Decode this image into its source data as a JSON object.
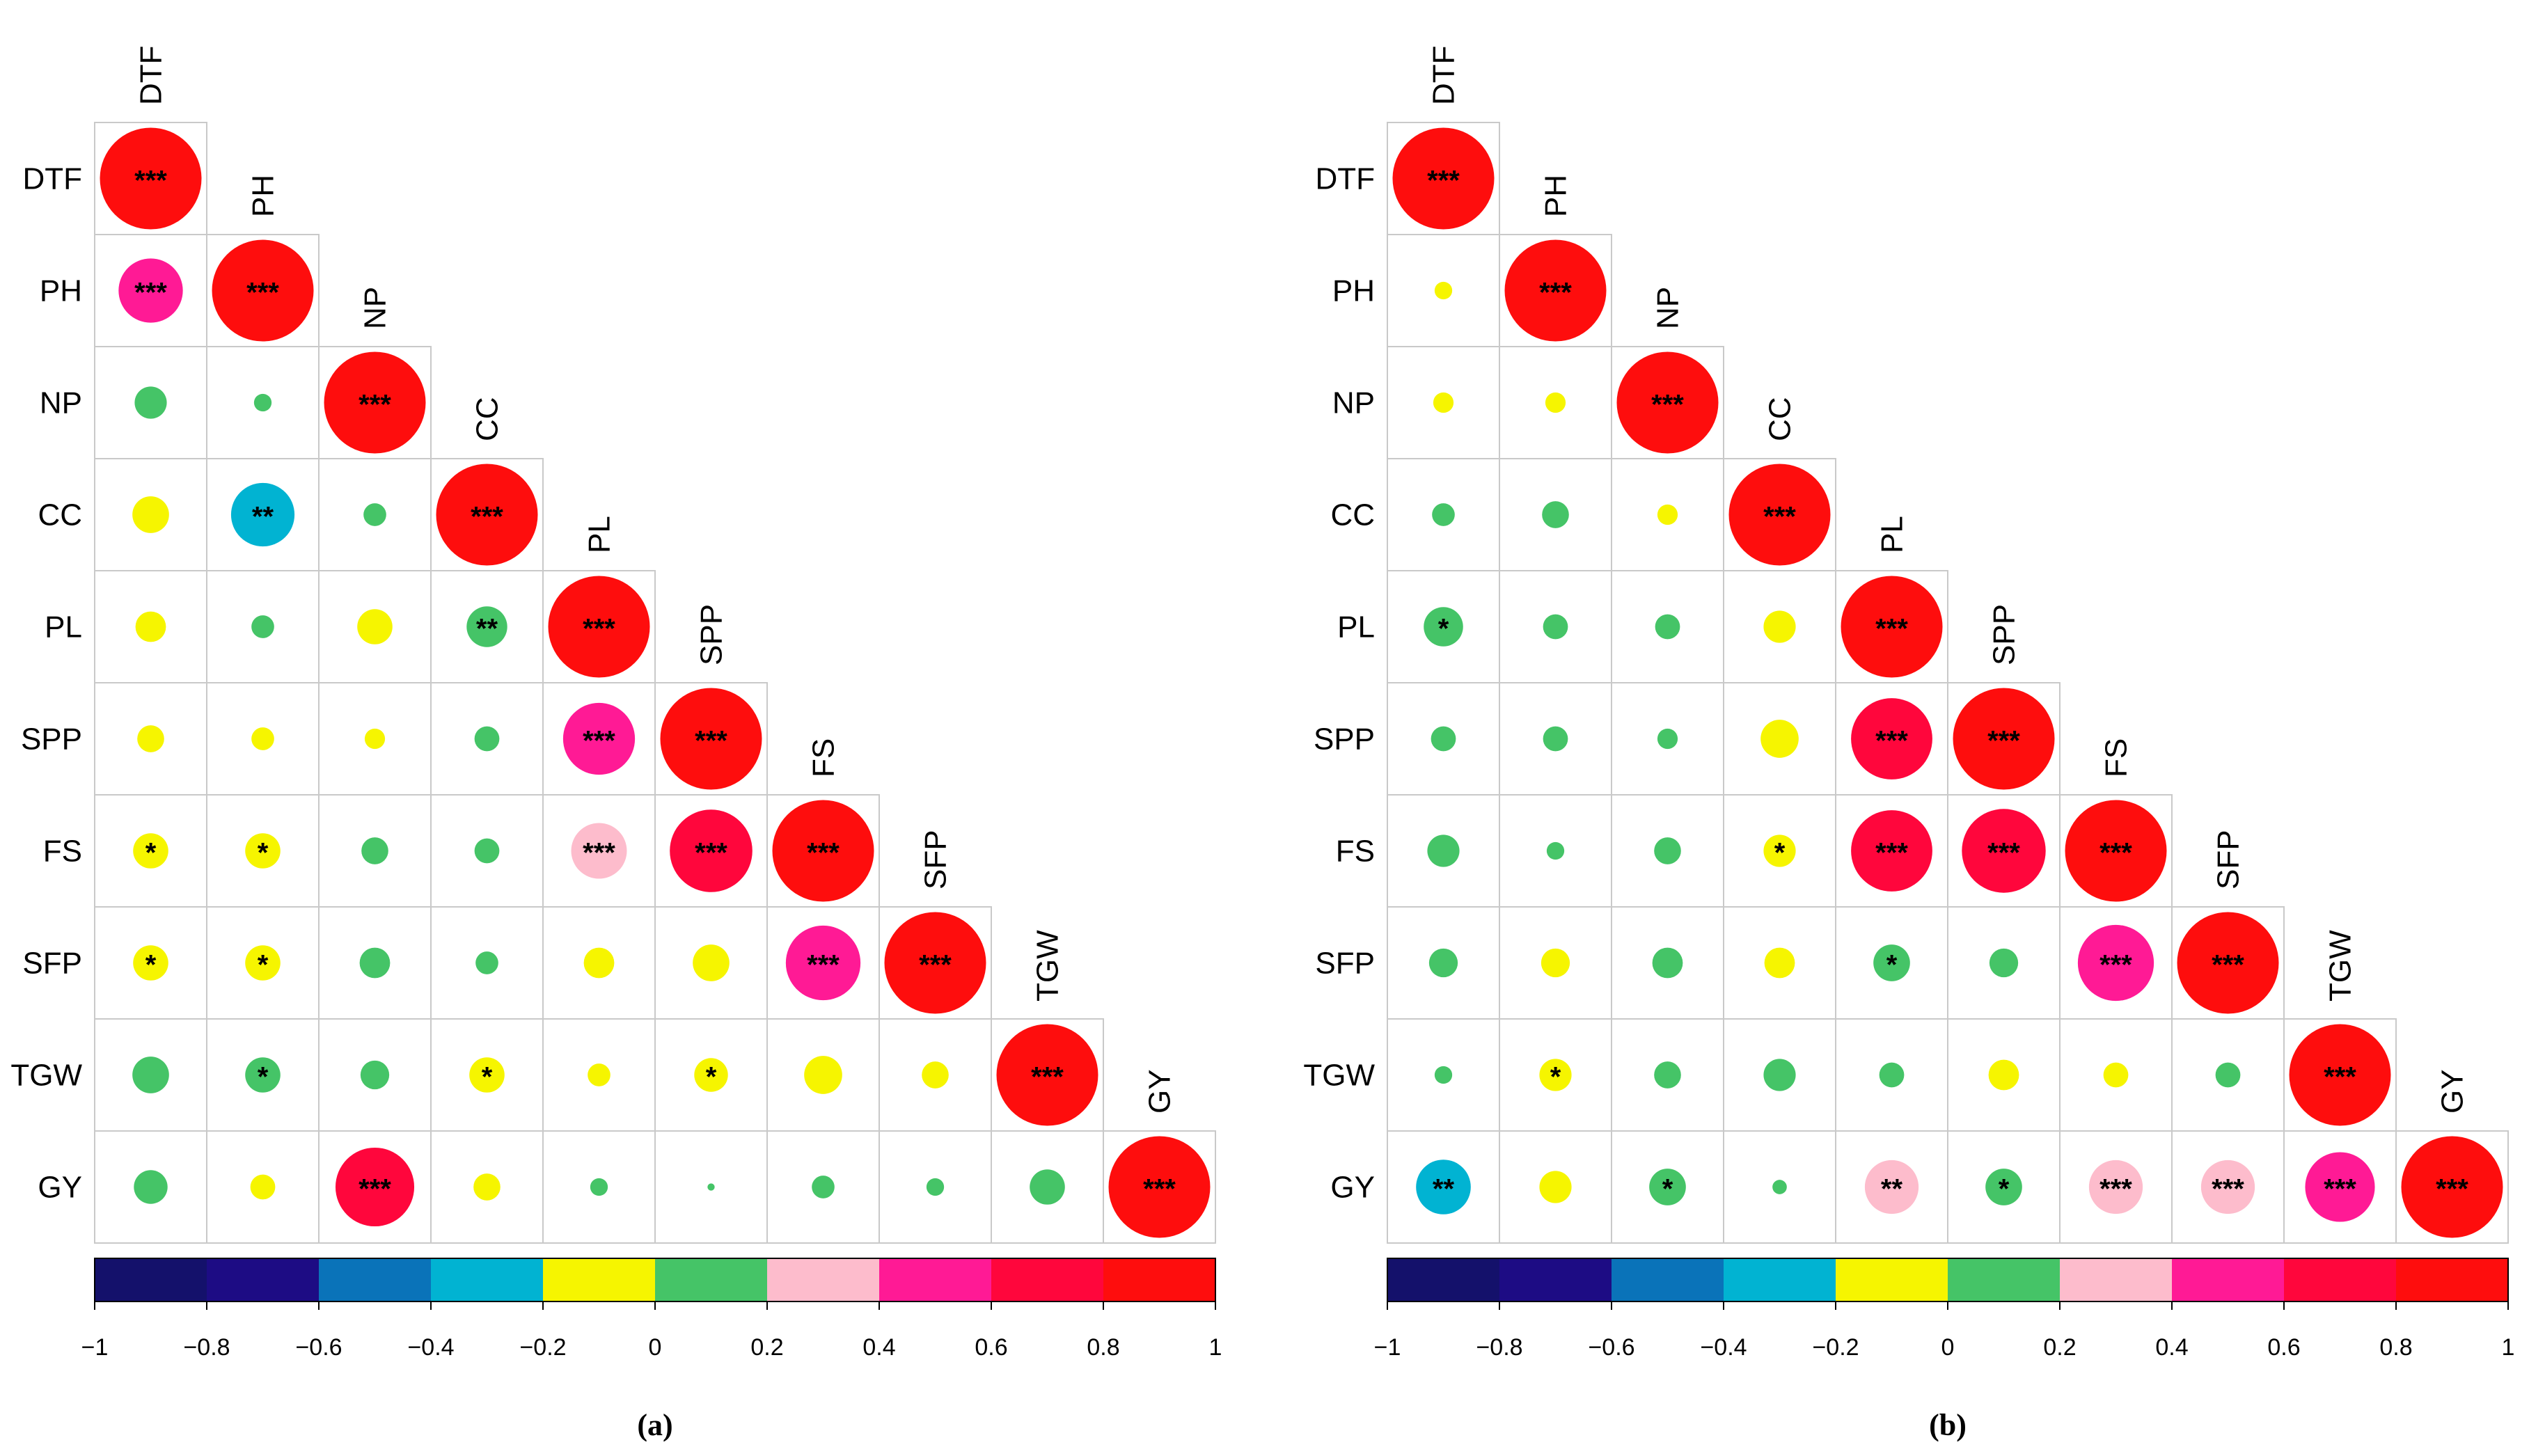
{
  "chart_data": [
    {
      "type": "heatmap",
      "panel": "(a)",
      "variables": [
        "DTF",
        "PH",
        "NP",
        "CC",
        "PL",
        "SPP",
        "FS",
        "SFP",
        "TGW",
        "GY"
      ],
      "color_scale": {
        "min": -1,
        "max": 1,
        "ticks": [
          "−1",
          "−0.8",
          "−0.6",
          "−0.4",
          "−0.2",
          "0",
          "0.2",
          "0.4",
          "0.6",
          "0.8",
          "1"
        ],
        "colors": [
          "#14116b",
          "#1d0c84",
          "#0a73b9",
          "#01b3d2",
          "#f6f500",
          "#45c467",
          "#fdbccc",
          "#ff1a95",
          "#ff063c",
          "#fe0d0d"
        ]
      },
      "matrix": [
        [
          1
        ],
        [
          0.4,
          1
        ],
        [
          0.1,
          0.03,
          1
        ],
        [
          -0.13,
          -0.39,
          0.05,
          1
        ],
        [
          -0.09,
          0.05,
          -0.12,
          0.16,
          1
        ],
        [
          -0.07,
          -0.05,
          -0.04,
          0.06,
          0.5,
          1
        ],
        [
          -0.12,
          -0.12,
          0.07,
          0.06,
          0.3,
          0.66,
          1
        ],
        [
          -0.12,
          -0.12,
          0.09,
          0.05,
          -0.09,
          -0.13,
          0.54,
          1
        ],
        [
          0.13,
          0.12,
          0.08,
          -0.12,
          -0.05,
          -0.11,
          -0.14,
          -0.07,
          1
        ],
        [
          0.11,
          -0.06,
          0.6,
          -0.07,
          0.03,
          0.005,
          0.05,
          0.03,
          0.12,
          1
        ]
      ],
      "significance": [
        [
          "***"
        ],
        [
          "***",
          "***"
        ],
        [
          "",
          "",
          "***"
        ],
        [
          "",
          "**",
          "",
          "***"
        ],
        [
          "",
          "",
          "",
          "**",
          "***"
        ],
        [
          "",
          "",
          "",
          "",
          "***",
          "***"
        ],
        [
          "*",
          "*",
          "",
          "",
          "***",
          "***",
          "***"
        ],
        [
          "*",
          "*",
          "",
          "",
          "",
          "",
          "***",
          "***"
        ],
        [
          "",
          "*",
          "",
          "*",
          "",
          "*",
          "",
          "",
          "***"
        ],
        [
          "",
          "",
          "***",
          "",
          "",
          "",
          "",
          "",
          "",
          "***"
        ]
      ]
    },
    {
      "type": "heatmap",
      "panel": "(b)",
      "variables": [
        "DTF",
        "PH",
        "NP",
        "CC",
        "PL",
        "SPP",
        "FS",
        "SFP",
        "TGW",
        "GY"
      ],
      "color_scale": {
        "min": -1,
        "max": 1,
        "ticks": [
          "−1",
          "−0.8",
          "−0.6",
          "−0.4",
          "−0.2",
          "0",
          "0.2",
          "0.4",
          "0.6",
          "0.8",
          "1"
        ],
        "colors": [
          "#14116b",
          "#1d0c84",
          "#0a73b9",
          "#01b3d2",
          "#f6f500",
          "#45c467",
          "#fdbccc",
          "#ff1a95",
          "#ff063c",
          "#fe0d0d"
        ]
      },
      "matrix": [
        [
          1
        ],
        [
          -0.03,
          1
        ],
        [
          -0.04,
          -0.04,
          1
        ],
        [
          0.05,
          0.07,
          -0.04,
          1
        ],
        [
          0.15,
          0.06,
          0.06,
          -0.1,
          1
        ],
        [
          0.06,
          0.06,
          0.04,
          -0.14,
          0.64,
          1
        ],
        [
          0.1,
          0.03,
          0.07,
          -0.1,
          0.64,
          0.68,
          1
        ],
        [
          0.08,
          -0.08,
          0.09,
          -0.09,
          0.13,
          0.08,
          0.56,
          1
        ],
        [
          0.03,
          -0.1,
          0.07,
          0.1,
          0.06,
          -0.09,
          -0.06,
          0.06,
          1
        ],
        [
          -0.29,
          -0.1,
          0.13,
          0.02,
          0.28,
          0.13,
          0.28,
          0.28,
          0.47,
          1
        ]
      ],
      "significance": [
        [
          "***"
        ],
        [
          "",
          "***"
        ],
        [
          "",
          "",
          "***"
        ],
        [
          "",
          "",
          "",
          "***"
        ],
        [
          "*",
          "",
          "",
          "",
          "***"
        ],
        [
          "",
          "",
          "",
          "",
          "***",
          "***"
        ],
        [
          "",
          "",
          "",
          "*",
          "***",
          "***",
          "***"
        ],
        [
          "",
          "",
          "",
          "",
          "*",
          "",
          "***",
          "***"
        ],
        [
          "",
          "*",
          "",
          "",
          "",
          "",
          "",
          "",
          "***"
        ],
        [
          "**",
          "",
          "*",
          "",
          "**",
          "*",
          "***",
          "***",
          "***",
          "***"
        ]
      ]
    }
  ]
}
